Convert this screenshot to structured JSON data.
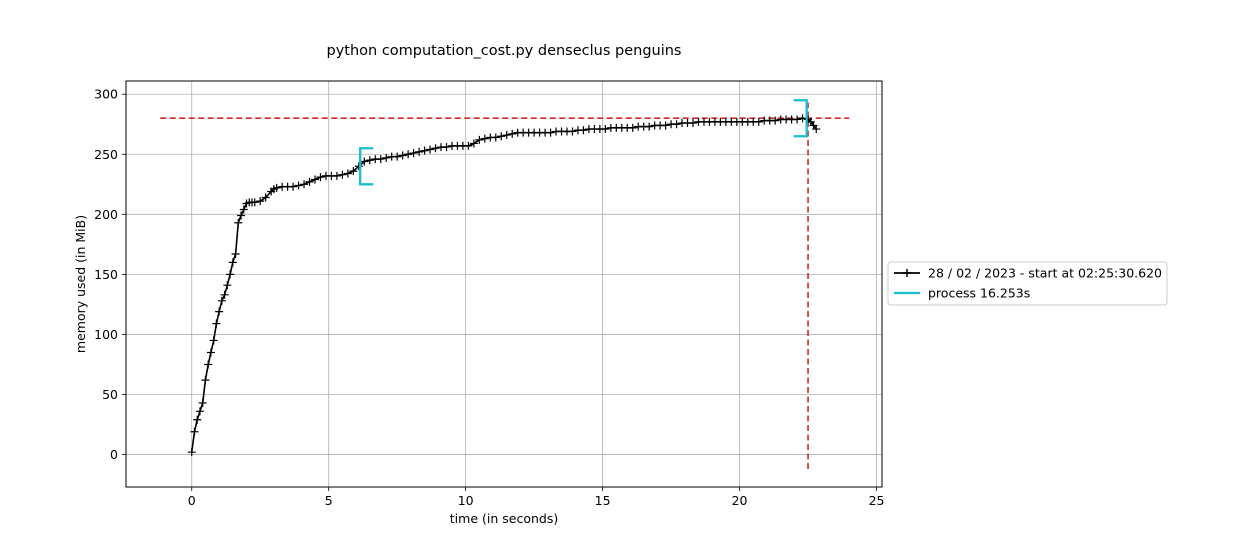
{
  "chart_data": {
    "type": "line",
    "title": "python computation_cost.py denseclus penguins",
    "xlabel": "time (in seconds)",
    "ylabel": "memory used (in MiB)",
    "xlim": [
      -2.4,
      25.2
    ],
    "ylim": [
      -27,
      311
    ],
    "xticks": [
      0,
      5,
      10,
      15,
      20,
      25
    ],
    "yticks": [
      0,
      50,
      100,
      150,
      200,
      250,
      300
    ],
    "grid": true,
    "legend_position": "outside-right",
    "series": [
      {
        "name": "28 / 02 / 2023 - start at 02:25:30.620",
        "color": "#000000",
        "marker": "plus",
        "x": [
          0.0,
          0.1,
          0.2,
          0.3,
          0.4,
          0.5,
          0.6,
          0.7,
          0.8,
          0.9,
          1.0,
          1.1,
          1.2,
          1.3,
          1.4,
          1.5,
          1.6,
          1.7,
          1.8,
          1.9,
          2.0,
          2.1,
          2.2,
          2.3,
          2.5,
          2.7,
          2.9,
          3.0,
          3.1,
          3.3,
          3.5,
          3.7,
          3.9,
          4.1,
          4.3,
          4.5,
          4.7,
          4.9,
          5.1,
          5.3,
          5.5,
          5.7,
          5.9,
          6.1,
          6.3,
          6.5,
          6.7,
          6.9,
          7.1,
          7.3,
          7.5,
          7.7,
          7.9,
          8.1,
          8.3,
          8.5,
          8.7,
          8.9,
          9.1,
          9.3,
          9.5,
          9.7,
          9.9,
          10.1,
          10.3,
          10.5,
          10.7,
          10.9,
          11.1,
          11.3,
          11.5,
          11.7,
          11.9,
          12.1,
          12.3,
          12.5,
          12.7,
          12.9,
          13.1,
          13.3,
          13.5,
          13.7,
          13.9,
          14.1,
          14.3,
          14.5,
          14.7,
          14.9,
          15.1,
          15.3,
          15.5,
          15.7,
          15.9,
          16.1,
          16.3,
          16.5,
          16.7,
          16.9,
          17.1,
          17.3,
          17.5,
          17.7,
          17.9,
          18.1,
          18.3,
          18.5,
          18.7,
          18.9,
          19.1,
          19.3,
          19.5,
          19.7,
          19.9,
          20.1,
          20.3,
          20.5,
          20.7,
          20.9,
          21.1,
          21.3,
          21.5,
          21.7,
          21.9,
          22.1,
          22.3,
          22.5,
          22.6,
          22.7,
          22.8
        ],
        "y": [
          2,
          19,
          29,
          36,
          43,
          62,
          75,
          85,
          95,
          109,
          119,
          128,
          133,
          141,
          150,
          160,
          167,
          193,
          199,
          204,
          209,
          210,
          210,
          210,
          211,
          214,
          219,
          221,
          222,
          223,
          223,
          223,
          224,
          225,
          227,
          229,
          231,
          232,
          232,
          232,
          233,
          234,
          236,
          240,
          244,
          245,
          246,
          246,
          247,
          248,
          248,
          249,
          250,
          251,
          252,
          253,
          254,
          255,
          256,
          256,
          257,
          257,
          257,
          257,
          259,
          262,
          263,
          264,
          264,
          265,
          266,
          267,
          268,
          268,
          268,
          268,
          268,
          268,
          268,
          269,
          269,
          269,
          269,
          270,
          270,
          271,
          271,
          271,
          271,
          272,
          272,
          272,
          272,
          272,
          273,
          273,
          273,
          274,
          274,
          274,
          275,
          275,
          276,
          276,
          276,
          277,
          277,
          277,
          277,
          277,
          277,
          277,
          277,
          277,
          277,
          277,
          277,
          278,
          278,
          278,
          279,
          279,
          279,
          279,
          280,
          279,
          277,
          274,
          271
        ]
      },
      {
        "name": "process 16.253s",
        "color": "#17becf",
        "type": "bracket"
      }
    ],
    "brackets": [
      {
        "x": 6.15,
        "y": [
          225,
          255
        ],
        "direction": "open-right"
      },
      {
        "x": 22.45,
        "y": [
          265,
          295
        ],
        "direction": "open-left"
      }
    ],
    "max_lines": {
      "color": "#d62728",
      "horizontal_y": 280,
      "horizontal_x": [
        -1.15,
        24.0
      ],
      "vertical_x": 22.5,
      "vertical_y": [
        -12,
        293
      ]
    }
  }
}
